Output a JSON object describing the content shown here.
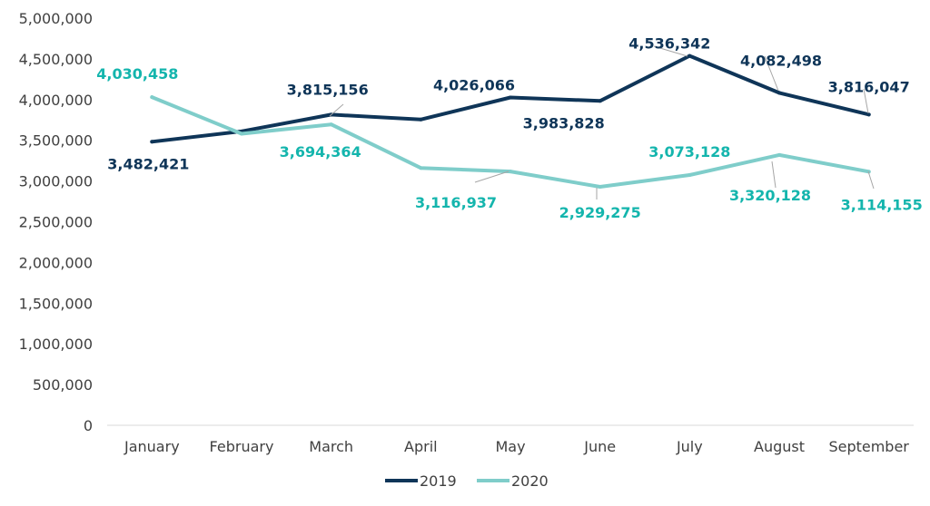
{
  "chart_data": {
    "type": "line",
    "categories": [
      "January",
      "February",
      "March",
      "April",
      "May",
      "June",
      "July",
      "August",
      "September"
    ],
    "ylim": [
      0,
      5000000
    ],
    "yticks": [
      0,
      500000,
      1000000,
      1500000,
      2000000,
      2500000,
      3000000,
      3500000,
      4000000,
      4500000,
      5000000
    ],
    "ytick_labels": [
      "0",
      "500,000",
      "1,000,000",
      "1,500,000",
      "2,000,000",
      "2,500,000",
      "3,000,000",
      "3,500,000",
      "4,000,000",
      "4,500,000",
      "5,000,000"
    ],
    "grid": false,
    "legend": "bottom",
    "series": [
      {
        "name": "2019",
        "color": "#0f3558",
        "values": [
          3482421,
          3610000,
          3815156,
          3755000,
          4026066,
          3983828,
          4536342,
          4082498,
          3816047
        ],
        "labels": [
          "3,482,421",
          null,
          "3,815,156",
          null,
          "4,026,066",
          "3,983,828",
          "4,536,342",
          "4,082,498",
          "3,816,047"
        ]
      },
      {
        "name": "2020",
        "color": "#7fcdca",
        "values": [
          4030458,
          3580000,
          3694364,
          3160000,
          3116937,
          2929275,
          3073128,
          3320128,
          3114155
        ],
        "labels": [
          "4,030,458",
          null,
          "3,694,364",
          null,
          "3,116,937",
          "2,929,275",
          "3,073,128",
          "3,320,128",
          "3,114,155"
        ]
      }
    ],
    "label_colors": {
      "2019": "#0f3558",
      "2020": "#14b5ad"
    }
  }
}
